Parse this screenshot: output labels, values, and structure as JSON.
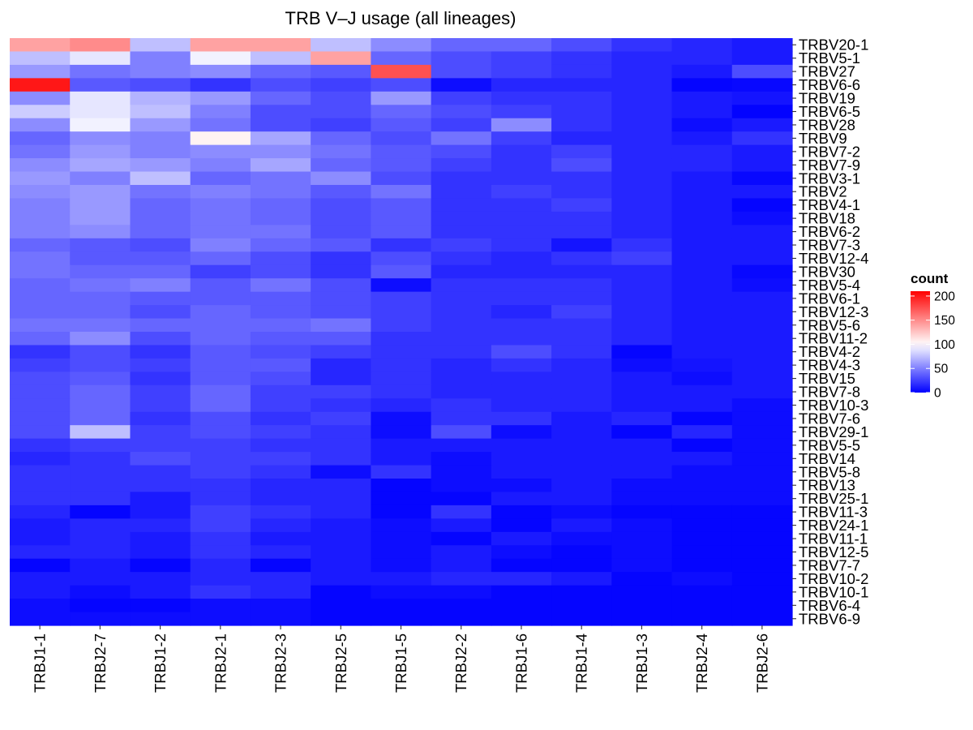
{
  "chart_data": {
    "type": "heatmap",
    "title": "TRB V–J usage (all lineages)",
    "xlabel": "",
    "ylabel": "",
    "x_categories": [
      "TRBJ1-1",
      "TRBJ2-7",
      "TRBJ1-2",
      "TRBJ2-1",
      "TRBJ2-3",
      "TRBJ2-5",
      "TRBJ1-5",
      "TRBJ2-2",
      "TRBJ1-6",
      "TRBJ1-4",
      "TRBJ1-3",
      "TRBJ2-4",
      "TRBJ2-6"
    ],
    "y_categories": [
      "TRBV20-1",
      "TRBV5-1",
      "TRBV27",
      "TRBV6-6",
      "TRBV19",
      "TRBV6-5",
      "TRBV28",
      "TRBV9",
      "TRBV7-2",
      "TRBV7-9",
      "TRBV3-1",
      "TRBV2",
      "TRBV4-1",
      "TRBV18",
      "TRBV6-2",
      "TRBV7-3",
      "TRBV12-4",
      "TRBV30",
      "TRBV5-4",
      "TRBV6-1",
      "TRBV12-3",
      "TRBV5-6",
      "TRBV11-2",
      "TRBV4-2",
      "TRBV4-3",
      "TRBV15",
      "TRBV7-8",
      "TRBV10-3",
      "TRBV7-6",
      "TRBV29-1",
      "TRBV5-5",
      "TRBV14",
      "TRBV5-8",
      "TRBV13",
      "TRBV25-1",
      "TRBV11-3",
      "TRBV24-1",
      "TRBV11-1",
      "TRBV12-5",
      "TRBV7-7",
      "TRBV10-2",
      "TRBV10-1",
      "TRBV6-4",
      "TRBV6-9"
    ],
    "values": [
      [
        140,
        150,
        75,
        140,
        140,
        75,
        55,
        40,
        40,
        30,
        20,
        15,
        10
      ],
      [
        75,
        90,
        50,
        95,
        75,
        140,
        40,
        30,
        25,
        20,
        15,
        15,
        10
      ],
      [
        60,
        45,
        50,
        55,
        40,
        35,
        175,
        30,
        25,
        20,
        15,
        10,
        30
      ],
      [
        200,
        35,
        30,
        20,
        30,
        25,
        30,
        5,
        15,
        15,
        15,
        2,
        3
      ],
      [
        55,
        90,
        70,
        60,
        40,
        30,
        60,
        25,
        20,
        20,
        15,
        10,
        8
      ],
      [
        80,
        90,
        75,
        50,
        30,
        30,
        40,
        30,
        25,
        20,
        15,
        10,
        1
      ],
      [
        55,
        95,
        60,
        45,
        30,
        25,
        35,
        25,
        55,
        20,
        15,
        5,
        10
      ],
      [
        40,
        55,
        50,
        105,
        65,
        40,
        30,
        45,
        25,
        15,
        15,
        10,
        20
      ],
      [
        45,
        60,
        50,
        55,
        55,
        45,
        35,
        30,
        20,
        25,
        15,
        15,
        10
      ],
      [
        55,
        65,
        60,
        50,
        65,
        40,
        35,
        25,
        20,
        30,
        15,
        15,
        10
      ],
      [
        60,
        50,
        75,
        40,
        45,
        55,
        30,
        20,
        20,
        20,
        15,
        10,
        3
      ],
      [
        55,
        60,
        45,
        50,
        45,
        35,
        45,
        20,
        25,
        20,
        15,
        10,
        10
      ],
      [
        50,
        60,
        40,
        45,
        40,
        30,
        35,
        20,
        20,
        25,
        15,
        10,
        2
      ],
      [
        50,
        60,
        40,
        45,
        40,
        30,
        35,
        20,
        20,
        20,
        15,
        10,
        5
      ],
      [
        50,
        55,
        40,
        45,
        45,
        30,
        35,
        20,
        20,
        20,
        15,
        10,
        10
      ],
      [
        40,
        35,
        30,
        50,
        40,
        35,
        20,
        25,
        20,
        8,
        20,
        10,
        10
      ],
      [
        45,
        35,
        35,
        40,
        30,
        20,
        30,
        20,
        15,
        20,
        25,
        10,
        10
      ],
      [
        45,
        40,
        40,
        25,
        30,
        20,
        35,
        15,
        15,
        15,
        15,
        10,
        3
      ],
      [
        40,
        45,
        50,
        35,
        45,
        30,
        5,
        20,
        20,
        20,
        15,
        10,
        5
      ],
      [
        40,
        40,
        35,
        35,
        35,
        30,
        25,
        20,
        20,
        20,
        15,
        10,
        10
      ],
      [
        40,
        40,
        30,
        40,
        35,
        30,
        25,
        20,
        15,
        25,
        15,
        10,
        10
      ],
      [
        45,
        45,
        40,
        40,
        40,
        45,
        25,
        20,
        20,
        20,
        15,
        10,
        10
      ],
      [
        40,
        55,
        30,
        40,
        35,
        35,
        20,
        20,
        20,
        20,
        15,
        10,
        10
      ],
      [
        20,
        30,
        20,
        35,
        30,
        25,
        20,
        20,
        30,
        20,
        2,
        10,
        10
      ],
      [
        25,
        30,
        25,
        35,
        35,
        15,
        20,
        15,
        20,
        15,
        5,
        8,
        10
      ],
      [
        30,
        35,
        20,
        35,
        30,
        15,
        20,
        15,
        15,
        15,
        10,
        5,
        10
      ],
      [
        30,
        40,
        25,
        40,
        25,
        25,
        20,
        15,
        15,
        15,
        10,
        10,
        10
      ],
      [
        30,
        40,
        25,
        40,
        25,
        20,
        15,
        20,
        15,
        15,
        10,
        10,
        5
      ],
      [
        30,
        40,
        20,
        30,
        20,
        25,
        5,
        20,
        20,
        10,
        15,
        2,
        5
      ],
      [
        30,
        75,
        25,
        30,
        25,
        20,
        5,
        30,
        5,
        10,
        2,
        15,
        5
      ],
      [
        20,
        25,
        25,
        25,
        20,
        20,
        10,
        10,
        10,
        10,
        10,
        2,
        5
      ],
      [
        15,
        20,
        30,
        25,
        25,
        20,
        10,
        5,
        10,
        10,
        10,
        10,
        5
      ],
      [
        20,
        20,
        20,
        25,
        20,
        5,
        20,
        5,
        10,
        10,
        10,
        5,
        5
      ],
      [
        20,
        20,
        20,
        20,
        15,
        15,
        2,
        5,
        5,
        10,
        5,
        5,
        5
      ],
      [
        20,
        20,
        10,
        20,
        15,
        15,
        2,
        2,
        10,
        10,
        5,
        5,
        5
      ],
      [
        15,
        2,
        10,
        25,
        20,
        15,
        2,
        20,
        2,
        5,
        2,
        2,
        2
      ],
      [
        10,
        15,
        15,
        25,
        15,
        10,
        5,
        10,
        2,
        10,
        5,
        2,
        2
      ],
      [
        10,
        15,
        10,
        20,
        10,
        10,
        5,
        2,
        10,
        5,
        5,
        2,
        2
      ],
      [
        15,
        15,
        10,
        20,
        15,
        10,
        5,
        10,
        5,
        2,
        5,
        2,
        2
      ],
      [
        2,
        10,
        2,
        15,
        2,
        10,
        5,
        10,
        2,
        2,
        5,
        2,
        2
      ],
      [
        10,
        10,
        10,
        15,
        15,
        10,
        10,
        15,
        15,
        10,
        2,
        5,
        2
      ],
      [
        10,
        5,
        10,
        20,
        15,
        2,
        5,
        5,
        2,
        2,
        2,
        2,
        2
      ],
      [
        5,
        2,
        2,
        5,
        5,
        2,
        2,
        2,
        2,
        2,
        2,
        2,
        2
      ],
      [
        5,
        5,
        5,
        5,
        5,
        2,
        2,
        2,
        2,
        2,
        2,
        2,
        2
      ]
    ],
    "color_scale": {
      "type": "diverging",
      "low": "#0000ff",
      "mid": "#ffffff",
      "high": "#ff0000",
      "midpoint": 100,
      "limits": [
        0,
        210
      ]
    },
    "legend": {
      "title": "count",
      "breaks": [
        0,
        50,
        100,
        150,
        200
      ],
      "labels": [
        "0",
        "50",
        "100",
        "150",
        "200"
      ],
      "placement": "right"
    },
    "grid": false
  }
}
